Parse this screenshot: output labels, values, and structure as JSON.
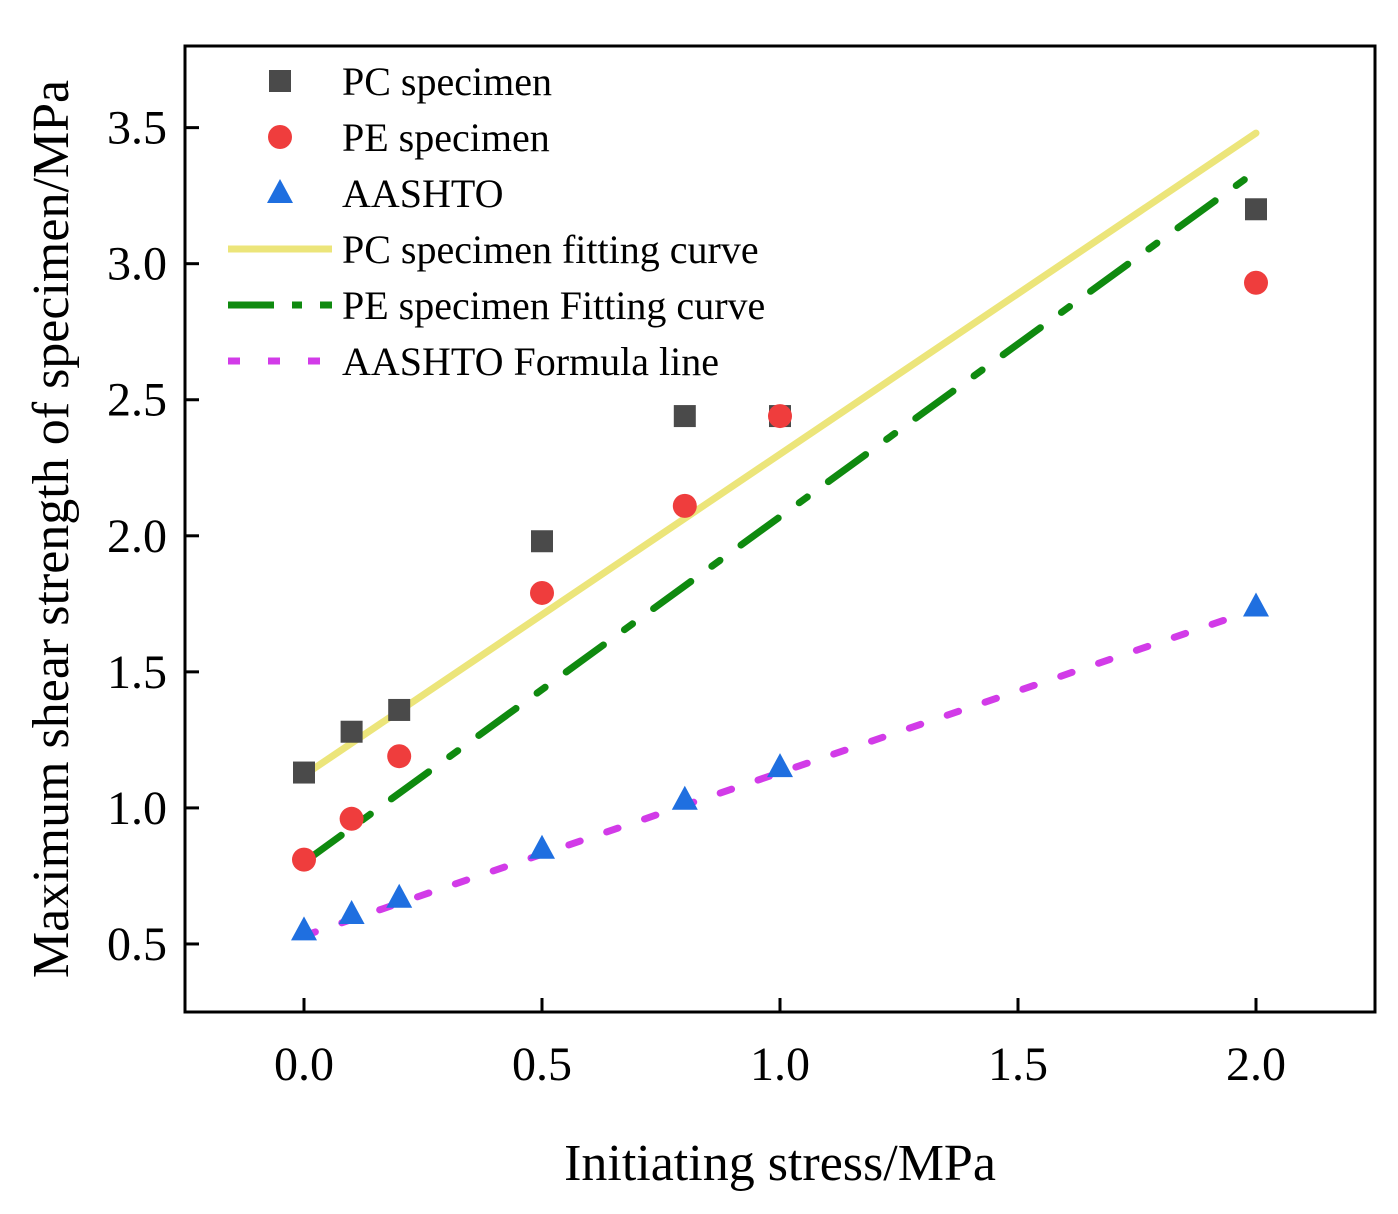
{
  "chart_data": {
    "type": "scatter",
    "title": "",
    "xlabel": "Initiating stress/MPa",
    "ylabel": "Maximum shear strength of specimen/MPa",
    "xlim": [
      -0.25,
      2.25
    ],
    "ylim": [
      0.25,
      3.8
    ],
    "xticks": [
      0.0,
      0.5,
      1.0,
      1.5,
      2.0
    ],
    "yticks": [
      0.5,
      1.0,
      1.5,
      2.0,
      2.5,
      3.0,
      3.5
    ],
    "xtick_labels": [
      "0.0",
      "0.5",
      "1.0",
      "1.5",
      "2.0"
    ],
    "ytick_labels": [
      "0.5",
      "1.0",
      "1.5",
      "2.0",
      "2.5",
      "3.0",
      "3.5"
    ],
    "legend_position": "top-left",
    "grid": false,
    "series": [
      {
        "name": "PC specimen",
        "kind": "scatter",
        "marker": "square",
        "color": "#4a4a4a",
        "x": [
          0,
          0.1,
          0.2,
          0.5,
          0.8,
          1.0,
          2.0
        ],
        "y": [
          1.13,
          1.28,
          1.36,
          1.98,
          2.44,
          2.44,
          3.2
        ]
      },
      {
        "name": "PE specimen",
        "kind": "scatter",
        "marker": "circle",
        "color": "#ef3d3d",
        "x": [
          0,
          0.1,
          0.2,
          0.5,
          0.8,
          1.0,
          2.0
        ],
        "y": [
          0.81,
          0.96,
          1.19,
          1.79,
          2.11,
          2.44,
          2.93
        ]
      },
      {
        "name": "AASHTO",
        "kind": "scatter",
        "marker": "triangle",
        "color": "#1f6fe0",
        "x": [
          0,
          0.1,
          0.2,
          0.5,
          0.8,
          1.0,
          2.0
        ],
        "y": [
          0.55,
          0.61,
          0.67,
          0.85,
          1.03,
          1.15,
          1.74
        ]
      },
      {
        "name": "PC specimen fitting curve",
        "kind": "line",
        "style": "solid",
        "color": "#ece57a",
        "x": [
          0,
          2.0
        ],
        "y": [
          1.12,
          3.48
        ]
      },
      {
        "name": "PE specimen Fitting curve",
        "kind": "line",
        "style": "dashdot",
        "color": "#0f8a0f",
        "x": [
          0,
          2.0
        ],
        "y": [
          0.8,
          3.34
        ]
      },
      {
        "name": "AASHTO Formula line",
        "kind": "line",
        "style": "dot",
        "color": "#d23be8",
        "x": [
          0,
          2.0
        ],
        "y": [
          0.53,
          1.73
        ]
      }
    ]
  }
}
